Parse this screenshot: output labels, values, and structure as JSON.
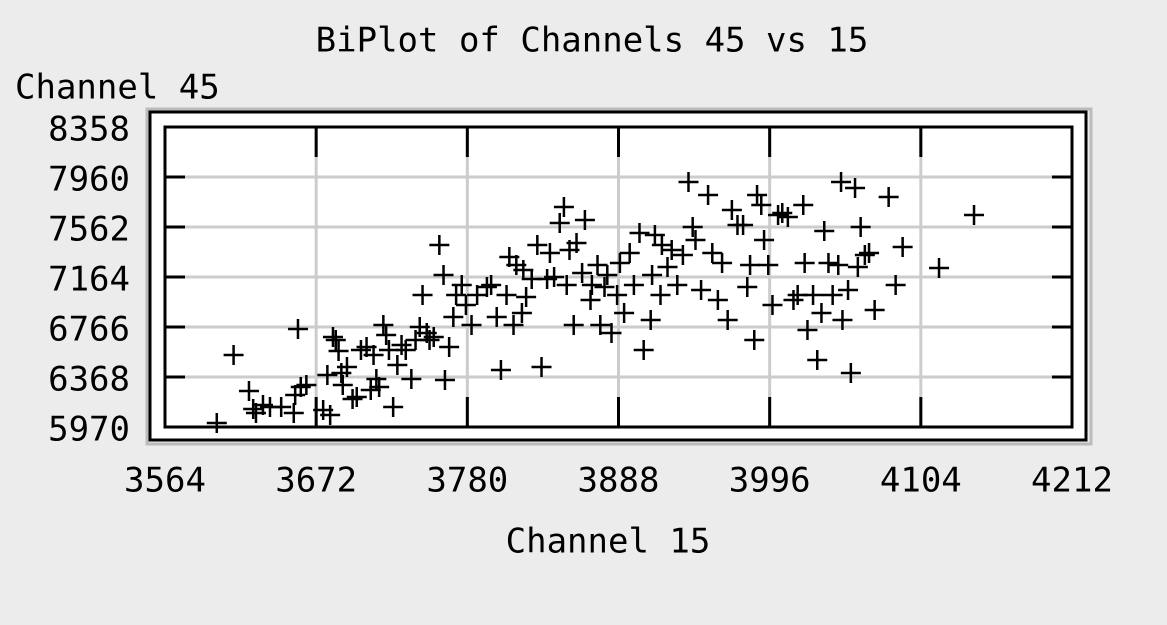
{
  "chart_data": {
    "type": "scatter",
    "title": "BiPlot of Channels 45 vs 15",
    "x_label": "Channel 15",
    "y_label": "Channel 45",
    "xlim": [
      3564,
      4212
    ],
    "xticks": [
      3564,
      3672,
      3780,
      3888,
      3996,
      4104,
      4212
    ],
    "ylim": [
      5970,
      8358
    ],
    "yticks": [
      5970,
      6368,
      6766,
      7164,
      7562,
      7960,
      8358
    ],
    "grid": true,
    "marker": "+",
    "color": "#000000",
    "x": [
      3601,
      3613,
      3624,
      3627,
      3629,
      3634,
      3639,
      3647,
      3656,
      3657,
      3659,
      3661,
      3665,
      3677,
      3682,
      3680,
      3684,
      3686,
      3688,
      3690,
      3691,
      3694,
      3698,
      3701,
      3704,
      3708,
      3711,
      3713,
      3715,
      3717,
      3720,
      3722,
      3724,
      3727,
      3730,
      3733,
      3736,
      3740,
      3743,
      3746,
      3748,
      3751,
      3753,
      3756,
      3760,
      3763,
      3764,
      3767,
      3770,
      3772,
      3776,
      3779,
      3783,
      3787,
      3794,
      3797,
      3801,
      3804,
      3808,
      3810,
      3813,
      3815,
      3819,
      3820,
      3822,
      3826,
      3830,
      3833,
      3837,
      3839,
      3842,
      3846,
      3849,
      3851,
      3853,
      3856,
      3858,
      3862,
      3864,
      3868,
      3869,
      3873,
      3875,
      3878,
      3880,
      3883,
      3887,
      3889,
      3892,
      3896,
      3899,
      3903,
      3906,
      3911,
      3912,
      3914,
      3918,
      3919,
      3923,
      3926,
      3930,
      3934,
      3938,
      3941,
      3943,
      3947,
      3952,
      3955,
      3959,
      3962,
      3966,
      3969,
      3973,
      3977,
      3980,
      3982,
      3985,
      3987,
      3990,
      3992,
      3995,
      3998,
      4002,
      4005,
      4009,
      4013,
      4016,
      4020,
      4021,
      4023,
      4027,
      4030,
      4033,
      4035,
      4038,
      4041,
      4045,
      4047,
      4048,
      4052,
      4054,
      4057,
      4059,
      4061,
      4064,
      4067,
      4071,
      4081,
      4086,
      4091,
      4117,
      4142
    ],
    "y": [
      6002,
      6543,
      6257,
      6113,
      6081,
      6145,
      6129,
      6129,
      6081,
      6225,
      6750,
      6288,
      6304,
      6105,
      6066,
      6384,
      6686,
      6663,
      6575,
      6400,
      6304,
      6448,
      6193,
      6209,
      6583,
      6607,
      6265,
      6543,
      6352,
      6288,
      6782,
      6702,
      6583,
      6129,
      6464,
      6623,
      6583,
      6352,
      6663,
      6766,
      7021,
      6718,
      6663,
      6686,
      7419,
      7180,
      6344,
      6607,
      6846,
      7021,
      7100,
      6941,
      6782,
      7021,
      7084,
      7100,
      6846,
      6424,
      7021,
      7323,
      6782,
      7260,
      6877,
      7220,
      7005,
      7148,
      7419,
      6448,
      7148,
      7355,
      7164,
      7594,
      7721,
      7100,
      7379,
      6782,
      7435,
      7196,
      7618,
      6981,
      7100,
      7260,
      6782,
      7084,
      7180,
      6718,
      7021,
      7275,
      6877,
      7355,
      7100,
      7514,
      6583,
      6822,
      7180,
      7498,
      7021,
      7419,
      7244,
      7379,
      7100,
      7339,
      7920,
      7562,
      7459,
      7061,
      7817,
      7355,
      6981,
      7275,
      6822,
      7697,
      7578,
      7578,
      7084,
      7260,
      6663,
      7817,
      7737,
      7459,
      7260,
      6941,
      7658,
      7673,
      7642,
      6981,
      7021,
      7737,
      7275,
      6742,
      7021,
      6503,
      6877,
      7530,
      7275,
      7021,
      7260,
      7920,
      6822,
      7061,
      6400,
      7872,
      7244,
      7562,
      7339,
      7355,
      6901,
      7801,
      7100,
      7403,
      7236,
      7658
    ]
  }
}
